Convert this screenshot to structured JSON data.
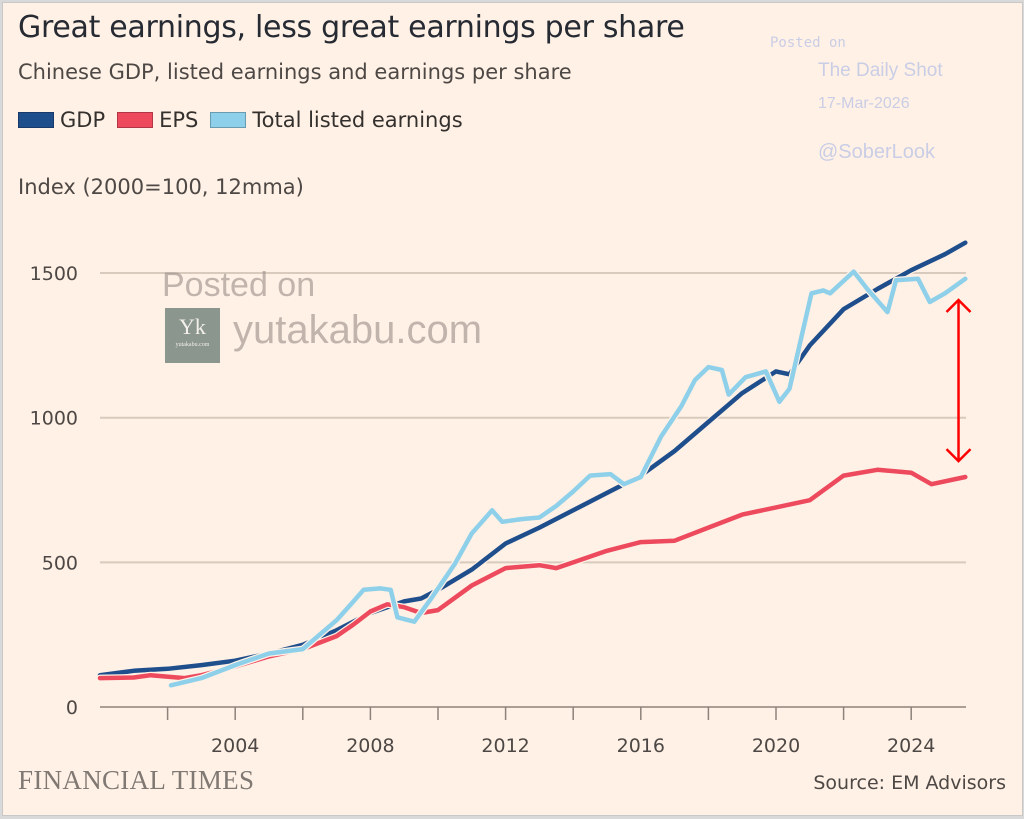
{
  "chart_data": {
    "type": "line",
    "title": "Great earnings, less great earnings per share",
    "subtitle": "Chinese GDP, listed earnings and earnings per share",
    "ylabel": "Index (2000=100, 12mma)",
    "xlabel": "",
    "xlim": [
      2000,
      2025.6
    ],
    "ylim": [
      0,
      1650
    ],
    "y_ticks": [
      0,
      500,
      1000,
      1500
    ],
    "y_tick_labels": [
      "0",
      "500",
      "1000",
      "1500"
    ],
    "x_ticks": [
      2002,
      2004,
      2006,
      2008,
      2010,
      2012,
      2014,
      2016,
      2018,
      2020,
      2022,
      2024
    ],
    "x_tick_labels": [
      {
        "year": 2004,
        "label": "2004"
      },
      {
        "year": 2008,
        "label": "2008"
      },
      {
        "year": 2012,
        "label": "2012"
      },
      {
        "year": 2016,
        "label": "2016"
      },
      {
        "year": 2020,
        "label": "2020"
      },
      {
        "year": 2024,
        "label": "2024"
      }
    ],
    "grid": "horizontal",
    "legend_position": "top-left",
    "series": [
      {
        "name": "GDP",
        "color": "#1f4e8c",
        "x": [
          2000,
          2001,
          2002,
          2003,
          2004,
          2005,
          2006,
          2007,
          2008,
          2009,
          2009.5,
          2010,
          2011,
          2012,
          2013,
          2014,
          2015,
          2016,
          2017,
          2018,
          2019,
          2020,
          2020.4,
          2021,
          2022,
          2023,
          2024,
          2025,
          2025.6
        ],
        "values": [
          110,
          125,
          132,
          145,
          160,
          185,
          215,
          265,
          325,
          365,
          375,
          405,
          475,
          565,
          620,
          680,
          740,
          800,
          885,
          985,
          1085,
          1160,
          1150,
          1250,
          1375,
          1445,
          1510,
          1565,
          1605
        ]
      },
      {
        "name": "EPS",
        "color": "#ed4a5e",
        "x": [
          2000,
          2001,
          2001.5,
          2002.5,
          2003,
          2004,
          2005,
          2006,
          2007,
          2007.5,
          2008,
          2008.5,
          2009,
          2009.5,
          2010,
          2011,
          2012,
          2013,
          2013.5,
          2014,
          2015,
          2016,
          2017,
          2018,
          2019,
          2020,
          2021,
          2022,
          2023,
          2024,
          2024.6,
          2025.6
        ],
        "values": [
          100,
          102,
          110,
          100,
          110,
          140,
          175,
          200,
          245,
          285,
          330,
          355,
          345,
          325,
          335,
          420,
          480,
          490,
          480,
          500,
          540,
          570,
          575,
          620,
          665,
          690,
          715,
          800,
          820,
          810,
          770,
          795
        ]
      },
      {
        "name": "Total listed earnings",
        "color": "#8ed0ea",
        "x": [
          2002.1,
          2003,
          2004,
          2005,
          2006,
          2007,
          2007.5,
          2007.8,
          2008.3,
          2008.6,
          2008.8,
          2009.3,
          2009.8,
          2010.5,
          2011,
          2011.6,
          2011.9,
          2012.5,
          2013,
          2013.5,
          2014,
          2014.5,
          2015.1,
          2015.5,
          2016,
          2016.6,
          2017.2,
          2017.6,
          2018,
          2018.4,
          2018.6,
          2019.1,
          2019.7,
          2020.1,
          2020.4,
          2021.05,
          2021.4,
          2021.6,
          2022.3,
          2022.7,
          2023.3,
          2023.55,
          2024.2,
          2024.55,
          2025,
          2025.6
        ],
        "values": [
          75,
          100,
          145,
          185,
          200,
          300,
          365,
          405,
          410,
          405,
          310,
          295,
          375,
          495,
          600,
          680,
          640,
          650,
          655,
          695,
          745,
          800,
          805,
          770,
          795,
          935,
          1040,
          1130,
          1175,
          1165,
          1080,
          1140,
          1160,
          1055,
          1100,
          1430,
          1440,
          1430,
          1505,
          1445,
          1365,
          1475,
          1480,
          1400,
          1430,
          1480
        ]
      }
    ],
    "annotations": [
      {
        "type": "double-arrow",
        "color": "#ff0000",
        "x": 2025.4,
        "from_value": 1400,
        "to_value": 850,
        "meaning": "gap between total listed earnings and EPS"
      }
    ]
  },
  "legend": [
    {
      "label": "GDP",
      "color": "#1f4e8c"
    },
    {
      "label": "EPS",
      "color": "#ed4a5e"
    },
    {
      "label": "Total listed earnings",
      "color": "#8ed0ea"
    }
  ],
  "footer": {
    "brand": "FINANCIAL TIMES",
    "source": "Source: EM Advisors"
  },
  "watermarks": {
    "daily_shot_posted": "Posted on",
    "daily_shot_name": "The Daily Shot",
    "daily_shot_date": "17-Mar-2026",
    "daily_shot_handle": "@SoberLook",
    "yutakabu_posted": "Posted on",
    "yutakabu_logo": "Yk",
    "yutakabu_logo_url": "yutakabu.com",
    "yutakabu_url": "yutakabu.com"
  }
}
